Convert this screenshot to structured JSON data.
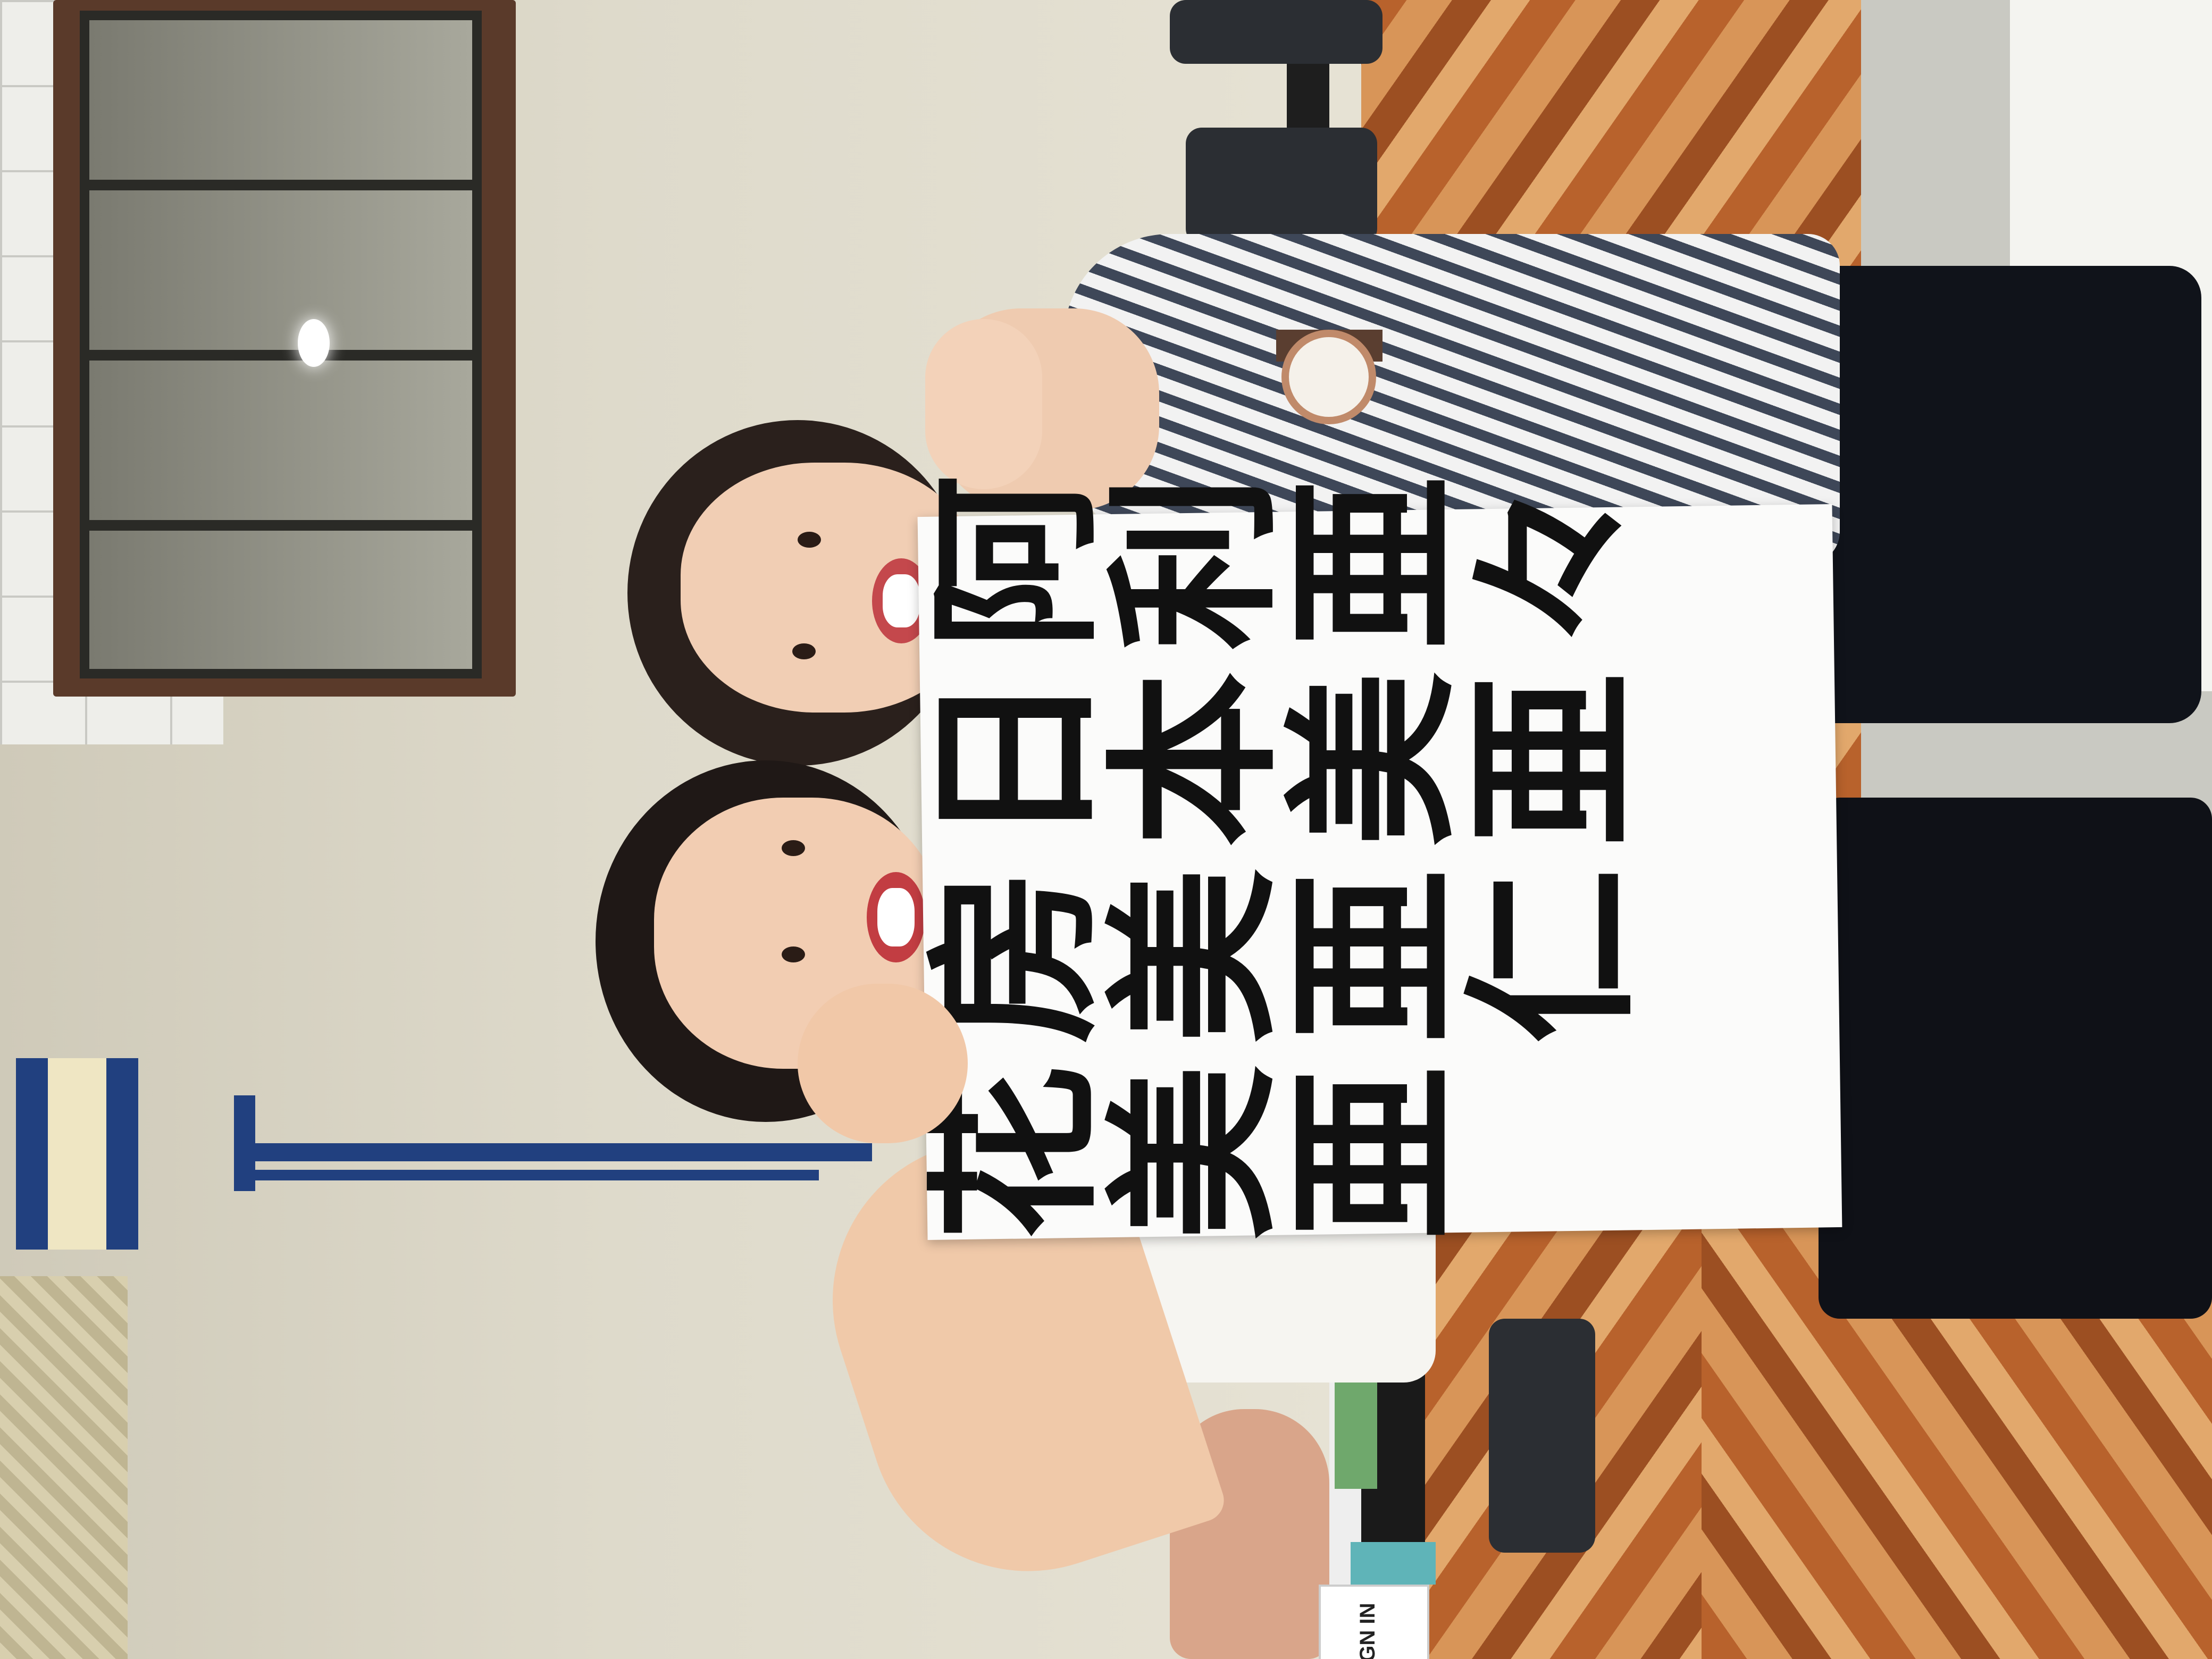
{
  "photo": {
    "setting": "calligraphy workshop room",
    "calligraphy_sheet": {
      "columns": [
        "阿利亜々",
        "日本美亜",
        "房美亜仁",
        "花美亜"
      ]
    },
    "sign_text": "GN IN"
  }
}
